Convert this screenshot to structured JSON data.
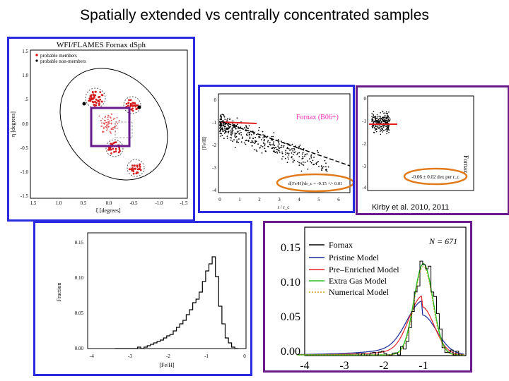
{
  "slide": {
    "title": "Spatially extended vs centrally concentrated samples"
  },
  "panel_map": {
    "title": "WFI/FLAMES Fornax dSph",
    "legend": [
      "probable members",
      "probable non-members"
    ],
    "xlabel": "ξ [degrees]",
    "ylabel": "η [degrees]",
    "xticks": [
      "1.5",
      "1.0",
      "0.5",
      "0.0",
      "-0.5",
      "-1.0",
      "-1.5"
    ],
    "yticks": [
      "1.5",
      "1.0",
      ".5",
      "0.0",
      "-0.5",
      "-1.0",
      "-1.5"
    ]
  },
  "panel_gradient": {
    "label": "Fornax (B06+)",
    "annotation": "d[Fe/H]/dr_c = -0.15 +/- 0.01",
    "xlabel": "r / r_c",
    "ylabel": "[Fe/H]",
    "xticks": [
      "0",
      "1",
      "2",
      "3",
      "4",
      "5",
      "6"
    ],
    "yticks": [
      "0",
      "-1",
      "-2",
      "-3",
      "-4"
    ],
    "accent": "#ff2ab8"
  },
  "panel_kirby": {
    "label": "Fornax",
    "annotation": "-0.06 ± 0.02 dex per r_c",
    "caption": "Kirby et al. 2010, 2011",
    "yticks": [
      "0",
      "-1",
      "-2",
      "-3",
      "-4"
    ]
  },
  "panel_hist": {
    "xlabel": "[Fe/H]",
    "ylabel": "Fraction",
    "xticks": [
      "-4",
      "-3",
      "-2",
      "-1",
      "0"
    ],
    "yticks": [
      "0.15",
      "0.10",
      "0.05",
      "0.00"
    ]
  },
  "panel_models": {
    "n_label": "N = 671",
    "xticks": [
      "-4",
      "-3",
      "-2",
      "-1"
    ],
    "yticks": [
      "0.15",
      "0.10",
      "0.05",
      "0.00"
    ],
    "legend": [
      {
        "name": "Fornax",
        "color": "#000000"
      },
      {
        "name": "Pristine Model",
        "color": "#1a2a9a"
      },
      {
        "name": "Pre–Enriched Model",
        "color": "#e8242a"
      },
      {
        "name": "Extra Gas Model",
        "color": "#22c022"
      },
      {
        "name": "Numerical Model",
        "color": "#c8a020"
      }
    ]
  }
}
